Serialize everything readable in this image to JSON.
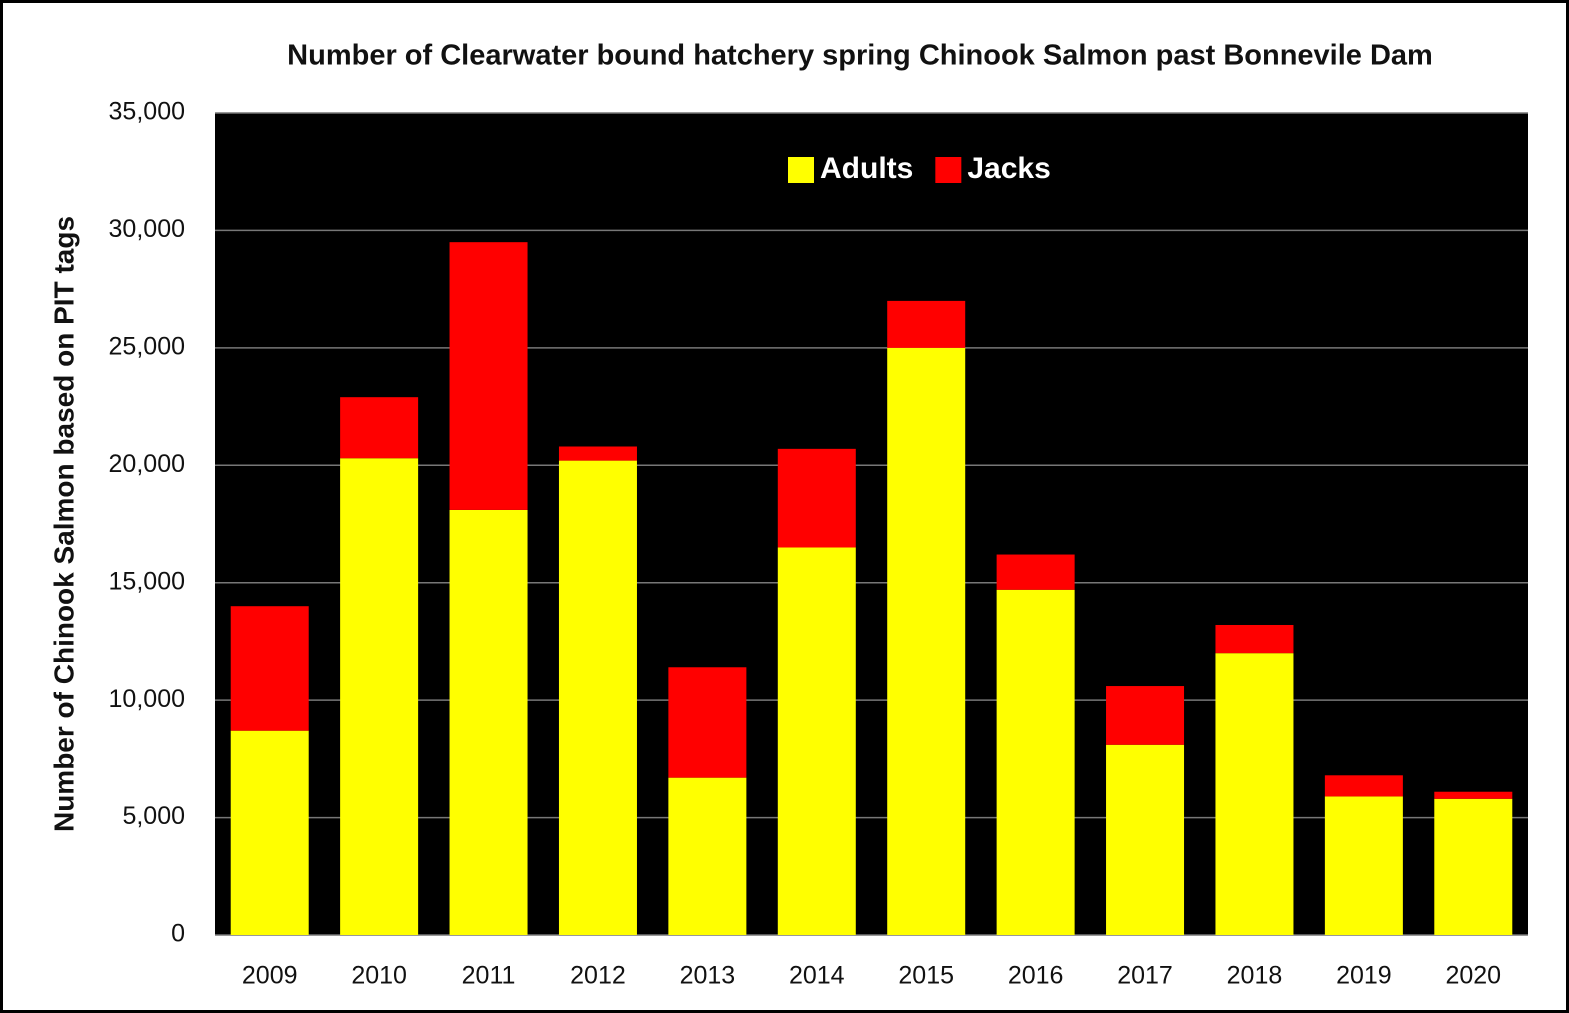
{
  "chart_data": {
    "type": "stacked_bar",
    "title": "Number of Clearwater bound hatchery spring Chinook Salmon past Bonnevile Dam",
    "y_label": "Number of Chinook Salmon based on PIT tags",
    "categories": [
      "2009",
      "2010",
      "2011",
      "2012",
      "2013",
      "2014",
      "2015",
      "2016",
      "2017",
      "2018",
      "2019",
      "2020"
    ],
    "series": [
      {
        "name": "Adults",
        "color": "#ffff00",
        "values": [
          8700,
          20300,
          18100,
          20200,
          6700,
          16500,
          25000,
          14700,
          8100,
          12000,
          5900,
          5800
        ]
      },
      {
        "name": "Jacks",
        "color": "#ff0000",
        "values": [
          5300,
          2600,
          11400,
          600,
          4700,
          4200,
          2000,
          1500,
          2500,
          1200,
          900,
          300
        ]
      }
    ],
    "ylim": [
      0,
      35000
    ],
    "yticks": [
      0,
      {
        "value": 5000,
        "label": "5,000"
      },
      {
        "value": 10000,
        "label": "10,000"
      },
      {
        "value": 15000,
        "label": "15,000"
      },
      {
        "value": 20000,
        "label": "20,000"
      },
      {
        "value": 25000,
        "label": "25,000"
      },
      {
        "value": 30000,
        "label": "30,000"
      },
      {
        "value": 35000,
        "label": "35,000"
      }
    ],
    "grid": true,
    "legend": "top",
    "plot_background": "#000000"
  }
}
